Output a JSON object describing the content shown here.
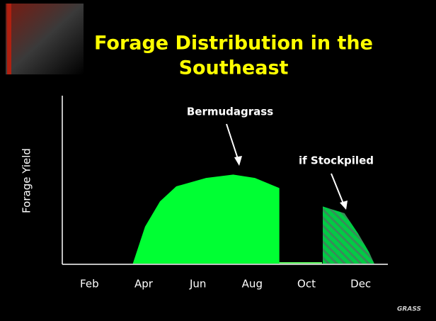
{
  "chart_data": {
    "type": "area",
    "title": "Forage Distribution in the Southeast",
    "title_lines": [
      "Forage Distribution in the",
      "Southeast"
    ],
    "ylabel": "Forage Yield",
    "xlim": [
      1,
      13
    ],
    "xticks": [
      {
        "value": 2,
        "label": "Feb"
      },
      {
        "value": 4,
        "label": "Apr"
      },
      {
        "value": 6,
        "label": "Jun"
      },
      {
        "value": 8,
        "label": "Aug"
      },
      {
        "value": 10,
        "label": "Oct"
      },
      {
        "value": 12,
        "label": "Dec"
      }
    ],
    "ylim": [
      0,
      100
    ],
    "series": [
      {
        "name": "Bermudagrass",
        "color": "#00ff33",
        "hatch": false,
        "x": [
          3.6,
          4.05,
          4.6,
          5.2,
          6.3,
          7.3,
          8.1,
          9.0,
          9.0
        ],
        "values": [
          0,
          22,
          37,
          46,
          51,
          53,
          51,
          45,
          0
        ]
      },
      {
        "name": "if Stockpiled",
        "color": "#00cc44",
        "hatch": true,
        "x": [
          10.6,
          10.6,
          11.4,
          11.9,
          12.3,
          12.5
        ],
        "values": [
          0,
          34,
          30,
          18,
          7,
          0
        ]
      }
    ],
    "logo": "GRASS"
  }
}
